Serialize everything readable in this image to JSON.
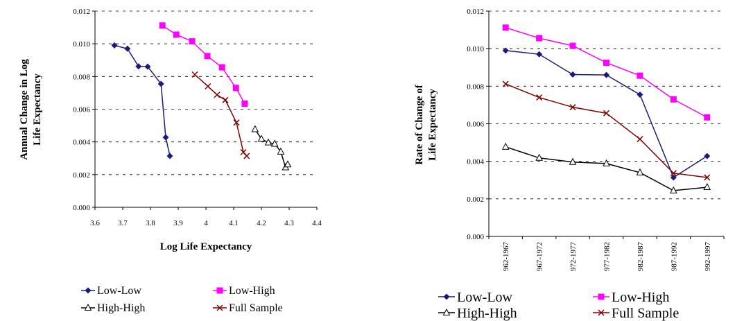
{
  "chart_data": [
    {
      "type": "scatter",
      "title": "",
      "xlabel": "Log Life Expectancy",
      "ylabel": "Annual Change in Log Life Expectancy",
      "xlim": [
        3.6,
        4.4
      ],
      "ylim": [
        0.0,
        0.012
      ],
      "x_ticks": [
        "3.6",
        "3.7",
        "3.8",
        "3.9",
        "4",
        "4.1",
        "4.2",
        "4.3",
        "4.4"
      ],
      "y_ticks": [
        "0.000",
        "0.002",
        "0.004",
        "0.006",
        "0.008",
        "0.010",
        "0.012"
      ],
      "grid": "horizontal dashed",
      "legend_position": "bottom",
      "series": [
        {
          "name": "Low-Low",
          "color": "#1a1a7a",
          "marker": "diamond",
          "points": [
            [
              3.67,
              0.0099
            ],
            [
              3.717,
              0.0097
            ],
            [
              3.757,
              0.00862
            ],
            [
              3.79,
              0.0086
            ],
            [
              3.838,
              0.00755
            ],
            [
              3.855,
              0.00428
            ],
            [
              3.87,
              0.00314
            ]
          ]
        },
        {
          "name": "Low-High",
          "color": "#ff00ff",
          "marker": "square",
          "points": [
            [
              3.843,
              0.01112
            ],
            [
              3.893,
              0.01056
            ],
            [
              3.95,
              0.01015
            ],
            [
              4.005,
              0.00925
            ],
            [
              4.058,
              0.00856
            ],
            [
              4.108,
              0.0073
            ],
            [
              4.14,
              0.00634
            ]
          ]
        },
        {
          "name": "High-High",
          "color": "#000000",
          "marker": "triangle",
          "points": [
            [
              4.177,
              0.00477
            ],
            [
              4.2,
              0.00418
            ],
            [
              4.225,
              0.00396
            ],
            [
              4.248,
              0.00388
            ],
            [
              4.27,
              0.0034
            ],
            [
              4.287,
              0.00244
            ],
            [
              4.295,
              0.00262
            ]
          ]
        },
        {
          "name": "Full Sample",
          "color": "#800000",
          "marker": "x",
          "points": [
            [
              3.96,
              0.00812
            ],
            [
              4.007,
              0.0074
            ],
            [
              4.04,
              0.00688
            ],
            [
              4.07,
              0.00656
            ],
            [
              4.11,
              0.00518
            ],
            [
              4.135,
              0.00337
            ],
            [
              4.147,
              0.00314
            ]
          ]
        }
      ]
    },
    {
      "type": "line",
      "title": "",
      "xlabel": "",
      "ylabel": "Rate of Change of Life Expectancy",
      "ylim": [
        0.0,
        0.012
      ],
      "y_ticks": [
        "0.000",
        "0.002",
        "0.004",
        "0.006",
        "0.008",
        "0.010",
        "0.012"
      ],
      "categories": [
        "962-1967",
        "967-1972",
        "972-1977",
        "977-1982",
        "982-1987",
        "987-1992",
        "992-1997"
      ],
      "grid": "horizontal dashed",
      "legend_position": "bottom",
      "series": [
        {
          "name": "Low-Low",
          "color": "#1a1a7a",
          "marker": "diamond",
          "values": [
            0.0099,
            0.0097,
            0.00862,
            0.0086,
            0.00755,
            0.00314,
            0.00428
          ]
        },
        {
          "name": "Low-High",
          "color": "#ff00ff",
          "marker": "square",
          "values": [
            0.01112,
            0.01056,
            0.01015,
            0.00925,
            0.00856,
            0.0073,
            0.00634
          ]
        },
        {
          "name": "High-High",
          "color": "#000000",
          "marker": "triangle",
          "values": [
            0.00477,
            0.00418,
            0.00396,
            0.00388,
            0.0034,
            0.00244,
            0.00262
          ]
        },
        {
          "name": "Full Sample",
          "color": "#800000",
          "marker": "x",
          "values": [
            0.00812,
            0.0074,
            0.00688,
            0.00656,
            0.00518,
            0.00337,
            0.00314
          ]
        }
      ]
    }
  ]
}
